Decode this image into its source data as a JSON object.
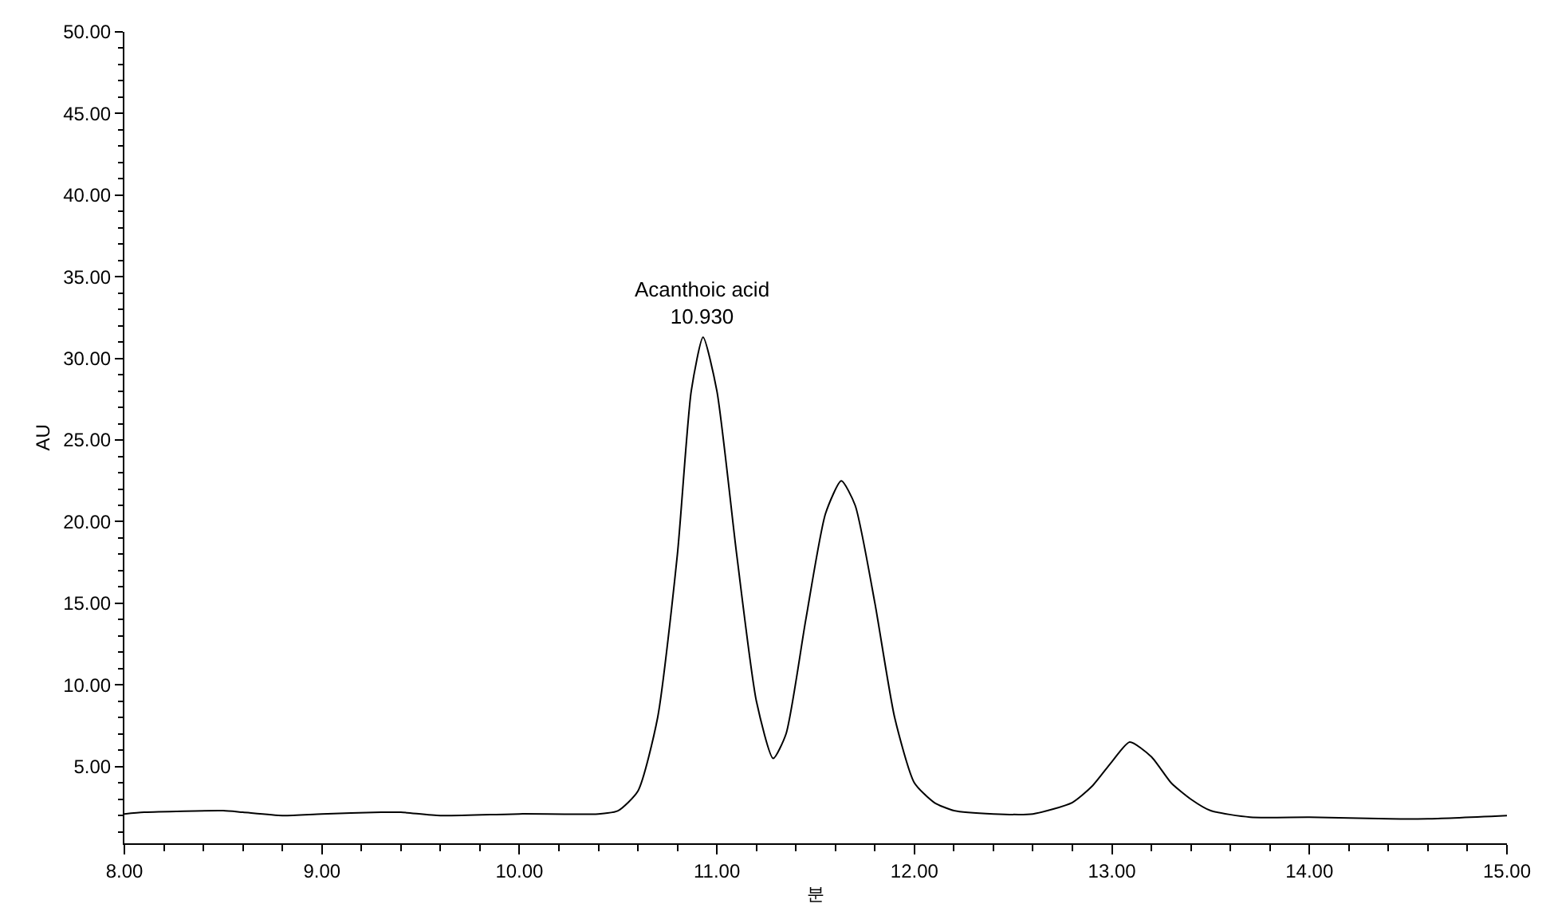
{
  "chart_data": {
    "type": "line",
    "xlabel": "분",
    "ylabel": "AU",
    "x": [
      8.0,
      8.1,
      8.5,
      8.6,
      8.8,
      9.0,
      9.3,
      9.4,
      9.6,
      10.0,
      10.4,
      10.5,
      10.6,
      10.7,
      10.8,
      10.87,
      10.93,
      11.0,
      11.1,
      11.2,
      11.285,
      11.35,
      11.45,
      11.55,
      11.63,
      11.7,
      11.8,
      11.9,
      12.0,
      12.1,
      12.2,
      12.4,
      12.6,
      12.8,
      12.9,
      13.0,
      13.09,
      13.2,
      13.3,
      13.4,
      13.5,
      13.7,
      14.0,
      14.4,
      14.6,
      15.0
    ],
    "series": [
      {
        "color": "#000000",
        "values": [
          2.1,
          2.2,
          2.3,
          2.2,
          2.0,
          2.1,
          2.2,
          2.2,
          2.0,
          2.1,
          2.1,
          2.3,
          3.5,
          8.0,
          18.0,
          28.0,
          31.3,
          28.0,
          18.0,
          9.0,
          5.5,
          7.0,
          14.0,
          20.5,
          22.5,
          21.0,
          15.0,
          8.0,
          4.0,
          2.8,
          2.3,
          2.1,
          2.1,
          2.8,
          3.8,
          5.3,
          6.5,
          5.6,
          4.0,
          3.0,
          2.3,
          1.9,
          1.9,
          1.8,
          1.8,
          2.0
        ]
      }
    ],
    "annotations": [
      {
        "text": "Acanthoic acid\n10.930",
        "x": 10.93,
        "y": 31.3
      }
    ],
    "xlim": [
      8.0,
      15.0
    ],
    "xticks": [
      {
        "value": 8,
        "label": "8.00"
      },
      {
        "value": 9,
        "label": "9.00"
      },
      {
        "value": 10,
        "label": "10.00"
      },
      {
        "value": 11,
        "label": "11.00"
      },
      {
        "value": 12,
        "label": "12.00"
      },
      {
        "value": 13,
        "label": "13.00"
      },
      {
        "value": 14,
        "label": "14.00"
      },
      {
        "value": 15,
        "label": "15.00"
      }
    ],
    "ylim": [
      0.3,
      50.0
    ],
    "yticks": [
      {
        "value": 5,
        "label": "5.00"
      },
      {
        "value": 10,
        "label": "10.00"
      },
      {
        "value": 15,
        "label": "15.00"
      },
      {
        "value": 20,
        "label": "20.00"
      },
      {
        "value": 25,
        "label": "25.00"
      },
      {
        "value": 30,
        "label": "30.00"
      },
      {
        "value": 35,
        "label": "35.00"
      },
      {
        "value": 40,
        "label": "40.00"
      },
      {
        "value": 45,
        "label": "45.00"
      },
      {
        "value": 50,
        "label": "50.00"
      }
    ],
    "marker": "none",
    "line_style": "solid"
  }
}
